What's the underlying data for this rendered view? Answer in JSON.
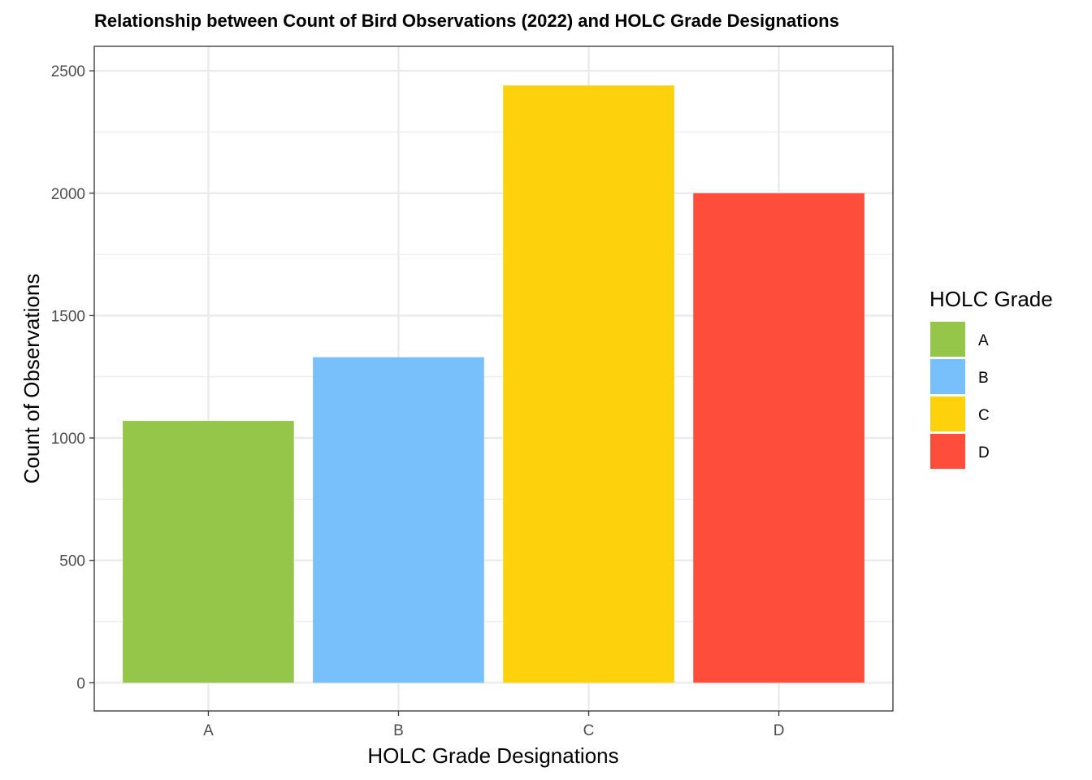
{
  "chart_data": {
    "type": "bar",
    "title": "Relationship between Count of Bird Observations (2022) and HOLC Grade Designations",
    "xlabel": "HOLC Grade Designations",
    "ylabel": "Count of Observations",
    "categories": [
      "A",
      "B",
      "C",
      "D"
    ],
    "values": [
      1070,
      1330,
      2440,
      2000
    ],
    "colors": [
      "#95C64A",
      "#78C0FB",
      "#FDD20C",
      "#FE4E3B"
    ],
    "ylim": [
      -115,
      2600
    ],
    "yticks": [
      0,
      500,
      1000,
      1500,
      2000,
      2500
    ],
    "grid": true,
    "legend": {
      "title": "HOLC Grade",
      "placement": "right",
      "entries": [
        "A",
        "B",
        "C",
        "D"
      ]
    }
  }
}
